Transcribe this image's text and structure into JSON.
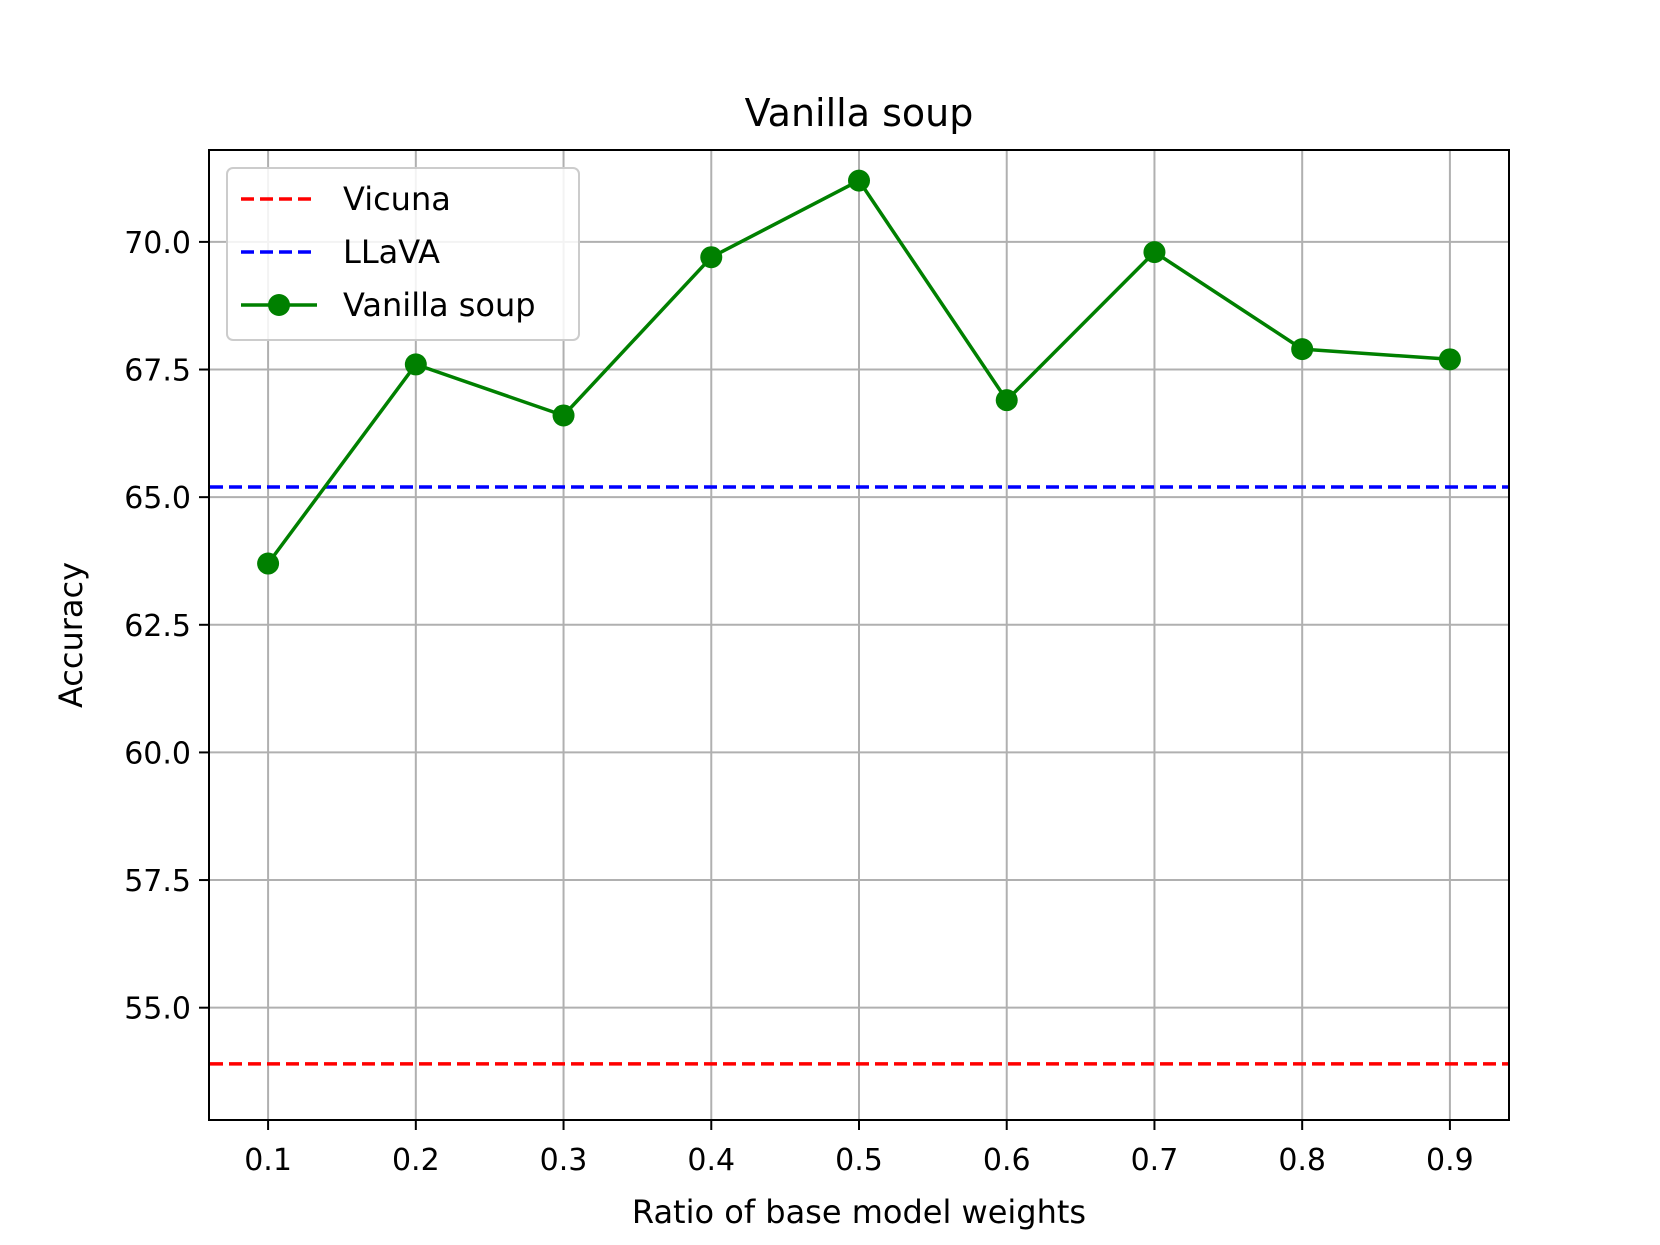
{
  "chart_data": {
    "type": "line",
    "title": "Vanilla soup",
    "xlabel": "Ratio of base model weights",
    "ylabel": "Accuracy",
    "x": [
      0.1,
      0.2,
      0.3,
      0.4,
      0.5,
      0.6,
      0.7,
      0.8,
      0.9
    ],
    "x_tick_labels": [
      "0.1",
      "0.2",
      "0.3",
      "0.4",
      "0.5",
      "0.6",
      "0.7",
      "0.8",
      "0.9"
    ],
    "y_ticks": [
      55.0,
      57.5,
      60.0,
      62.5,
      65.0,
      67.5,
      70.0
    ],
    "y_tick_labels": [
      "55.0",
      "57.5",
      "60.0",
      "62.5",
      "65.0",
      "67.5",
      "70.0"
    ],
    "xlim": [
      0.06,
      0.94
    ],
    "ylim": [
      52.8,
      71.8
    ],
    "grid": true,
    "legend_position": "top-left",
    "reference_lines": [
      {
        "name": "Vicuna",
        "value": 53.9,
        "color": "#ff0000",
        "style": "dashed"
      },
      {
        "name": "LLaVA",
        "value": 65.2,
        "color": "#0000ff",
        "style": "dashed"
      }
    ],
    "series": [
      {
        "name": "Vanilla soup",
        "color": "#008000",
        "marker": "circle",
        "values": [
          63.7,
          67.6,
          66.6,
          69.7,
          71.2,
          66.9,
          69.8,
          67.9,
          67.7
        ]
      }
    ]
  }
}
